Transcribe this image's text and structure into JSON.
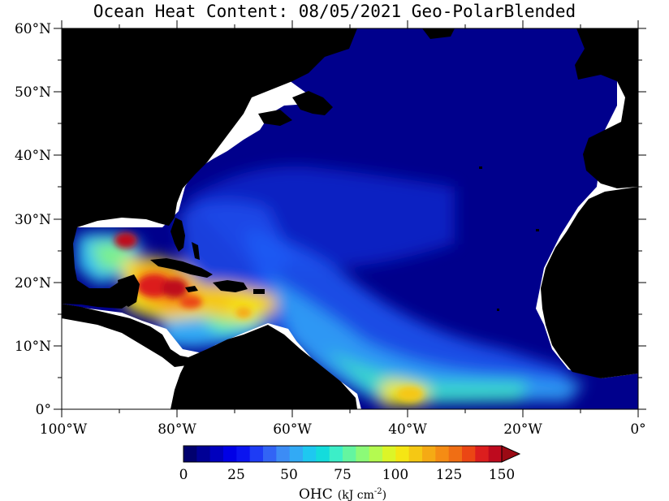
{
  "title": "Ocean Heat Content: 08/05/2021 Geo-PolarBlended",
  "latitude_labels": [
    "60°N",
    "50°N",
    "40°N",
    "30°N",
    "20°N",
    "10°N",
    "0°"
  ],
  "longitude_labels": [
    "100°W",
    "80°W",
    "60°W",
    "40°W",
    "20°W",
    "0°"
  ],
  "colorbar": {
    "tick_labels": [
      "0",
      "25",
      "50",
      "75",
      "100",
      "125",
      "150"
    ],
    "label": "OHC",
    "units": "(kJ cm",
    "units_exponent": "-2",
    "units_close": ")",
    "colors": [
      "#00006e",
      "#000096",
      "#0000be",
      "#0000e6",
      "#0a14f0",
      "#1e3cf5",
      "#3264f5",
      "#3c8cf5",
      "#32aaf5",
      "#1ec8f0",
      "#14dcdc",
      "#3ceec8",
      "#64f5a0",
      "#8cfa78",
      "#b4fa50",
      "#dcf528",
      "#f5e614",
      "#f5c814",
      "#f5aa14",
      "#f58c14",
      "#f06e14",
      "#eb4614",
      "#dc1e1e",
      "#be0a1e",
      "#9b0a14"
    ]
  },
  "colors": {
    "land": "#000000",
    "ocean_low": "#00008c",
    "no_data": "#ffffff"
  }
}
